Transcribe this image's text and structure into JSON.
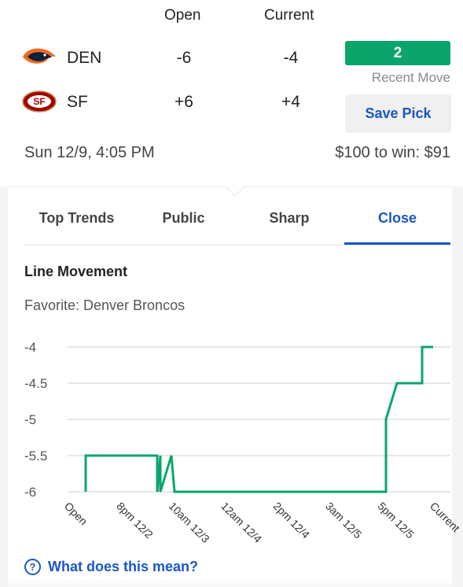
{
  "header": {
    "open_label": "Open",
    "current_label": "Current"
  },
  "teams": [
    {
      "abbr": "DEN",
      "logo": "broncos-logo-icon",
      "open": "-6",
      "current": "-4"
    },
    {
      "abbr": "SF",
      "logo": "49ers-logo-icon",
      "open": "+6",
      "current": "+4"
    }
  ],
  "recent_move": {
    "value": "2",
    "label": "Recent Move",
    "color": "#0ba56b"
  },
  "save_pick_label": "Save Pick",
  "game_time": "Sun 12/9, 4:05 PM",
  "to_win": "$100 to win: $91",
  "tabs": [
    {
      "label": "Top Trends",
      "active": false
    },
    {
      "label": "Public",
      "active": false
    },
    {
      "label": "Sharp",
      "active": false
    },
    {
      "label": "Close",
      "active": true
    }
  ],
  "line_movement": {
    "title": "Line Movement",
    "favorite": "Favorite: Denver Broncos"
  },
  "help_label": "What does this mean?",
  "colors": {
    "accent_blue": "#1a56c4",
    "line_green": "#0ba56b"
  },
  "chart_data": {
    "type": "line",
    "title": "",
    "xlabel": "",
    "ylabel": "",
    "x_ticks": [
      "Open",
      "8pm 12/2",
      "10am 12/3",
      "12am 12/4",
      "2pm 12/4",
      "3am 12/5",
      "5pm 12/5",
      "Current"
    ],
    "y_ticks": [
      "-4",
      "-4.5",
      "-5",
      "-5.5",
      "-6"
    ],
    "ylim": [
      -6,
      -4
    ],
    "grid": true,
    "series": [
      {
        "step": true,
        "points": [
          {
            "x": "Open",
            "y": -6
          },
          {
            "x": "Open",
            "y": -5.5
          },
          {
            "x": "10am 12/3",
            "y": -5.5
          },
          {
            "x": "10am 12/3",
            "y": -6
          },
          {
            "x": "10am 12/3",
            "y": -5.5
          },
          {
            "x": "10am 12/3",
            "y": -6
          },
          {
            "x": "10am 12/3",
            "y": -5.5
          },
          {
            "x": "10am 12/3",
            "y": -6
          },
          {
            "x": "5pm 12/5",
            "y": -6
          },
          {
            "x": "5pm 12/5",
            "y": -5
          },
          {
            "x": "5pm 12/5",
            "y": -4.5
          },
          {
            "x": "Current",
            "y": -4.5
          },
          {
            "x": "Current",
            "y": -4
          }
        ]
      }
    ]
  }
}
